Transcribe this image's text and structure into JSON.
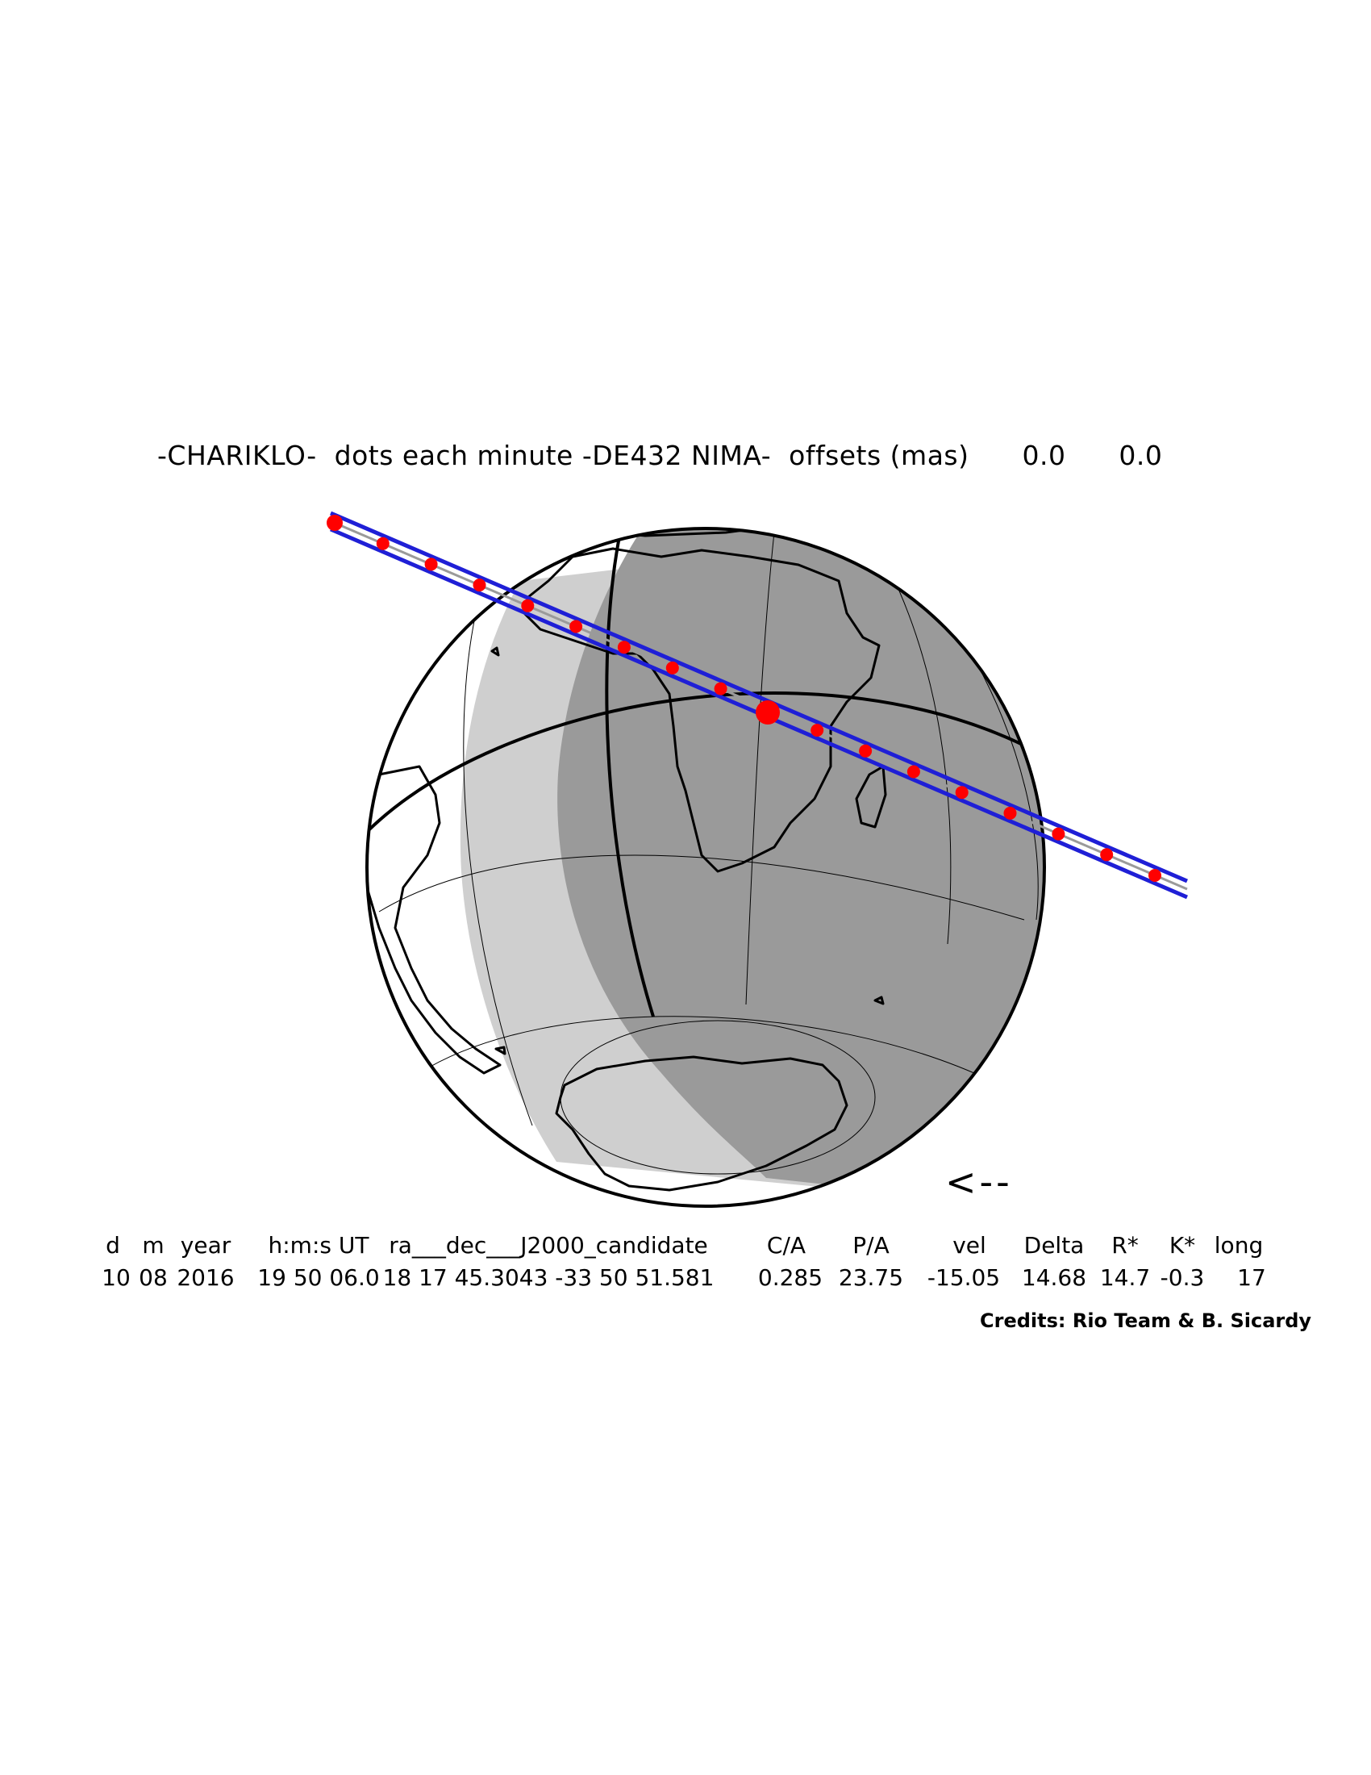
{
  "title": {
    "object": "-CHARIKLO-",
    "dots": "dots each minute",
    "ephemeris": "-DE432 NIMA-",
    "offsets_label": "offsets (mas)",
    "offset_ra": "0.0",
    "offset_dec": "0.0"
  },
  "direction_arrow": "<--",
  "table": {
    "headers": [
      "d",
      "m",
      "year",
      "h:m:s UT",
      "ra___dec___J2000_candidate",
      "C/A",
      "P/A",
      "vel",
      "Delta",
      "R*",
      "K*",
      "long"
    ],
    "values": [
      "10",
      "08",
      "2016",
      "19 50 06.0",
      "18 17 45.3043 -33 50 51.581",
      "0.285",
      "23.75",
      "-15.05",
      "14.68",
      "14.7",
      "-0.3",
      "17"
    ]
  },
  "credits": "Credits: Rio Team & B. Sicardy",
  "colors": {
    "night": "#9a9a9a",
    "twilight": "#cfcfcf",
    "day": "#ffffff",
    "track": "#1f1fd6",
    "center_line": "#9a9a9a",
    "minute_dots": "#ff0000"
  },
  "map": {
    "projection": "orthographic",
    "minute_dots_count": 18,
    "closest_approach_marker": "large red dot"
  }
}
